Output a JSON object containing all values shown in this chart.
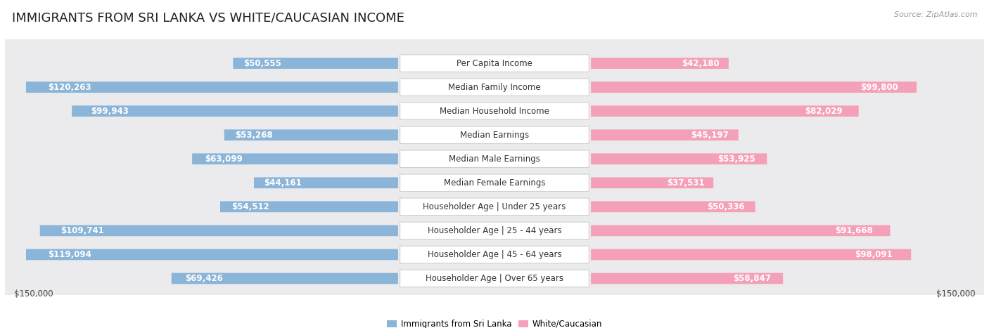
{
  "title": "IMMIGRANTS FROM SRI LANKA VS WHITE/CAUCASIAN INCOME",
  "source": "Source: ZipAtlas.com",
  "categories": [
    "Per Capita Income",
    "Median Family Income",
    "Median Household Income",
    "Median Earnings",
    "Median Male Earnings",
    "Median Female Earnings",
    "Householder Age | Under 25 years",
    "Householder Age | 25 - 44 years",
    "Householder Age | 45 - 64 years",
    "Householder Age | Over 65 years"
  ],
  "sri_lanka_values": [
    50555,
    120263,
    99943,
    53268,
    63099,
    44161,
    54512,
    109741,
    119094,
    69426
  ],
  "white_values": [
    42180,
    99800,
    82029,
    45197,
    53925,
    37531,
    50336,
    91668,
    98091,
    58847
  ],
  "sri_lanka_labels": [
    "$50,555",
    "$120,263",
    "$99,943",
    "$53,268",
    "$63,099",
    "$44,161",
    "$54,512",
    "$109,741",
    "$119,094",
    "$69,426"
  ],
  "white_labels": [
    "$42,180",
    "$99,800",
    "$82,029",
    "$45,197",
    "$53,925",
    "$37,531",
    "$50,336",
    "$91,668",
    "$98,091",
    "$58,847"
  ],
  "sri_lanka_color": "#8ab4d8",
  "white_color": "#f4a0b8",
  "max_value": 150000,
  "bg_color": "#ffffff",
  "row_bg_color": "#ebebed",
  "legend_sri_lanka": "Immigrants from Sri Lanka",
  "legend_white": "White/Caucasian",
  "xlim_label_left": "$150,000",
  "xlim_label_right": "$150,000",
  "title_fontsize": 13,
  "label_fontsize": 8.5,
  "category_fontsize": 8.5,
  "source_fontsize": 8,
  "inside_label_threshold": 0.22
}
